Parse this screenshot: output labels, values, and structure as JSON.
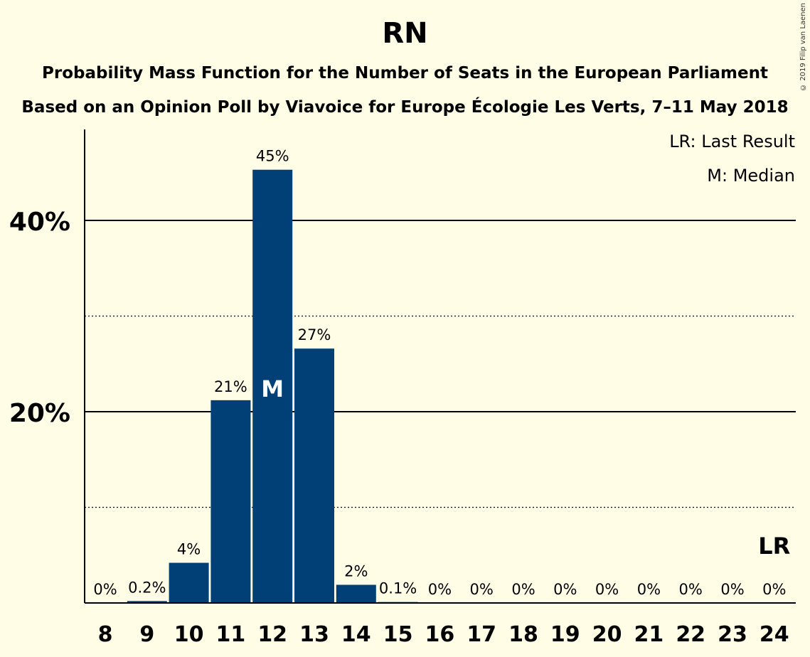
{
  "title": "RN",
  "subtitle_1": "Probability Mass Function for the Number of Seats in the European Parliament",
  "subtitle_2": "Based on an Opinion Poll by Viavoice for Europe Écologie Les Verts, 7–11 May 2018",
  "legend": {
    "last_result": "LR: Last Result",
    "median": "M: Median"
  },
  "copyright": "© 2019 Filip van Laenen",
  "colors": {
    "background": "#fffde5",
    "bar": "#004077",
    "text": "#000000"
  },
  "chart_data": {
    "type": "bar",
    "categories": [
      "8",
      "9",
      "10",
      "11",
      "12",
      "13",
      "14",
      "15",
      "16",
      "17",
      "18",
      "19",
      "20",
      "21",
      "22",
      "23",
      "24"
    ],
    "values": [
      0,
      0.2,
      4.2,
      21.2,
      45.3,
      26.6,
      1.9,
      0.1,
      0,
      0,
      0,
      0,
      0,
      0,
      0,
      0,
      0
    ],
    "value_labels": [
      "0%",
      "0.2%",
      "4%",
      "21%",
      "45%",
      "27%",
      "2%",
      "0.1%",
      "0%",
      "0%",
      "0%",
      "0%",
      "0%",
      "0%",
      "0%",
      "0%",
      "0%"
    ],
    "ylim": [
      0,
      49.5
    ],
    "yticks": [
      {
        "value": 20,
        "label": "20%"
      },
      {
        "value": 40,
        "label": "40%"
      }
    ],
    "minor_gridlines": [
      10,
      30
    ],
    "median": "12",
    "median_label": "M",
    "last_result": "24",
    "last_result_label": "LR",
    "legend_position": "top-right"
  }
}
